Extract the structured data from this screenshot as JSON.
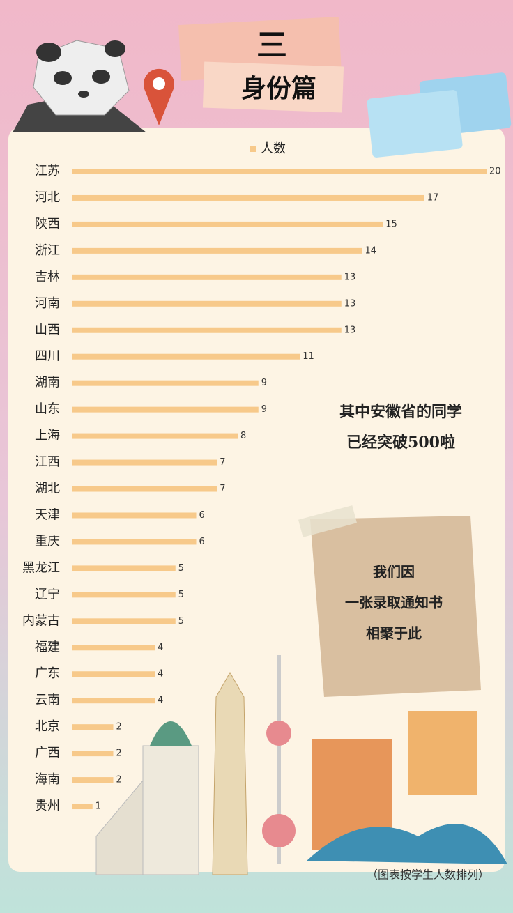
{
  "header": {
    "number": "三",
    "title": "身份篇"
  },
  "chart_data": {
    "type": "bar",
    "orientation": "horizontal",
    "categories": [
      "江苏",
      "河北",
      "陕西",
      "浙江",
      "吉林",
      "河南",
      "山西",
      "四川",
      "湖南",
      "山东",
      "上海",
      "江西",
      "湖北",
      "天津",
      "重庆",
      "黑龙江",
      "辽宁",
      "内蒙古",
      "福建",
      "广东",
      "云南",
      "北京",
      "广西",
      "海南",
      "贵州"
    ],
    "series": [
      {
        "name": "人数",
        "color": "#f7c98a",
        "values": [
          20,
          17,
          15,
          14,
          13,
          13,
          13,
          11,
          9,
          9,
          8,
          7,
          7,
          6,
          6,
          5,
          5,
          5,
          4,
          4,
          4,
          2,
          2,
          2,
          1
        ]
      }
    ],
    "legend": "top"
  },
  "annotations": {
    "highlight": [
      "其中安徽省的同学",
      "已经突破500啦"
    ],
    "note": [
      "我们因",
      "一张录取通知书",
      "相聚于此"
    ]
  },
  "footer": "（图表按学生人数排列）"
}
